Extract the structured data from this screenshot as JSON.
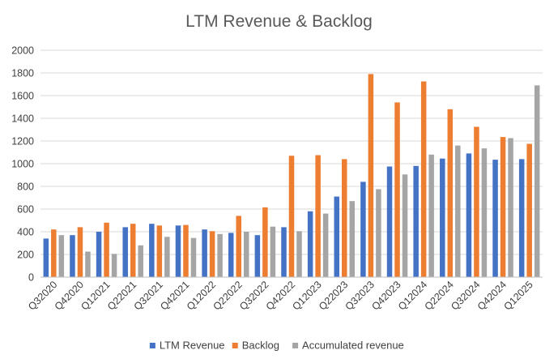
{
  "chart_data": {
    "type": "bar",
    "title": "LTM Revenue & Backlog",
    "xlabel": "",
    "ylabel": "",
    "ylim": [
      0,
      2000
    ],
    "yticks": [
      0,
      200,
      400,
      600,
      800,
      1000,
      1200,
      1400,
      1600,
      1800,
      2000
    ],
    "grid": true,
    "legend_position": "bottom",
    "categories": [
      "Q32020",
      "Q42020",
      "Q12021",
      "Q22021",
      "Q32021",
      "Q42021",
      "Q12022",
      "Q22022",
      "Q32022",
      "Q42022",
      "Q12023",
      "Q22023",
      "Q32023",
      "Q42023",
      "Q12024",
      "Q22024",
      "Q32024",
      "Q42024",
      "Q12025"
    ],
    "series": [
      {
        "name": "LTM Revenue",
        "color": "#4472C4",
        "values": [
          340,
          370,
          400,
          440,
          470,
          455,
          420,
          390,
          370,
          440,
          580,
          710,
          840,
          975,
          980,
          1045,
          1090,
          1035,
          1040
        ]
      },
      {
        "name": "Backlog",
        "color": "#ED7D31",
        "values": [
          420,
          440,
          480,
          470,
          455,
          460,
          405,
          540,
          615,
          1070,
          1075,
          1040,
          1790,
          1540,
          1725,
          1480,
          1325,
          1235,
          1175
        ]
      },
      {
        "name": "Accumulated revenue",
        "color": "#A5A5A5",
        "values": [
          370,
          225,
          205,
          280,
          355,
          345,
          380,
          400,
          445,
          405,
          560,
          670,
          775,
          905,
          1080,
          1160,
          1135,
          1225,
          1690
        ]
      }
    ]
  }
}
